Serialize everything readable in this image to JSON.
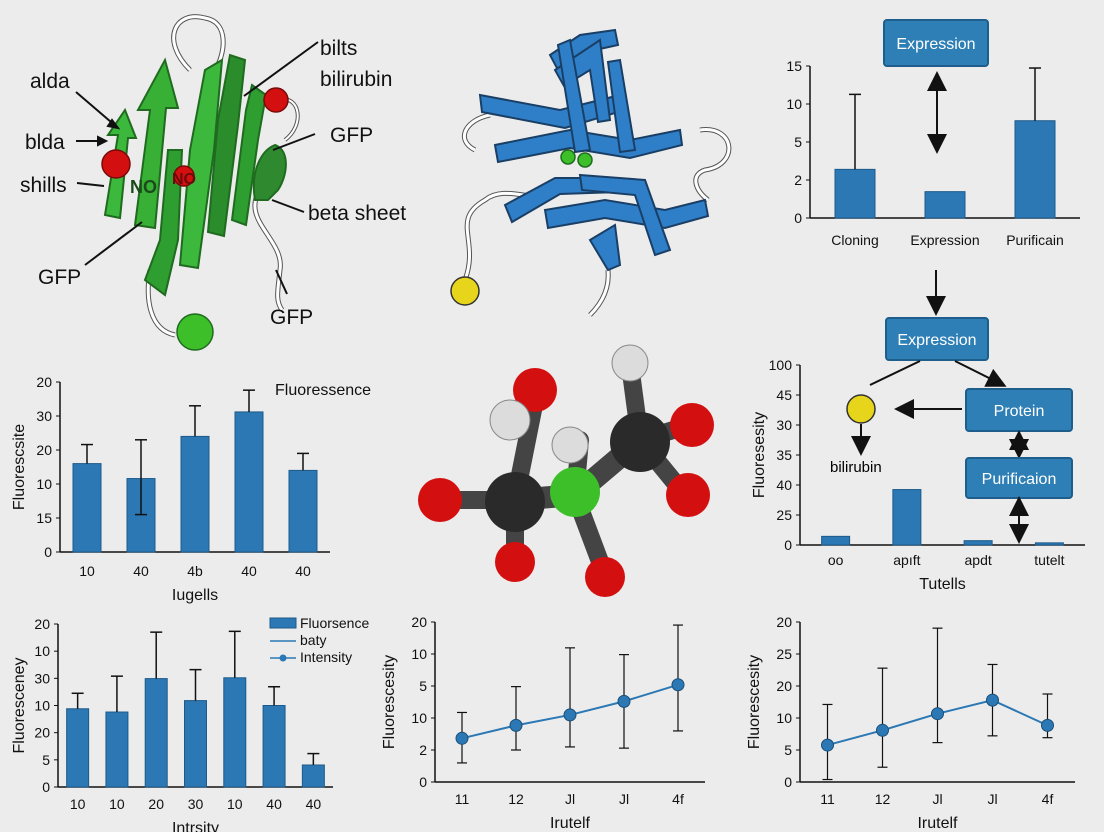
{
  "colors": {
    "bar": "#2b78b4",
    "bar_stroke": "#1d5a8a",
    "box_fill": "#2e7fb5",
    "box_stroke": "#1e5e8c",
    "green_strand": "#2f9e30",
    "blue_strand": "#2f7fc8",
    "red_atom": "#d40f0f",
    "yellow_atom": "#e6d51a",
    "green_atom": "#3dbf2a",
    "black_atom": "#2a2a2a",
    "white_atom": "#dcdcdc"
  },
  "gfp_structure": {
    "labels": {
      "alda": "alda",
      "bilts": "bilts",
      "bilirubin": "bilirubin",
      "blda": "blda",
      "gfp_right": "GFP",
      "shills": "shills",
      "beta_sheet": "beta sheet",
      "gfp_left": "GFP",
      "gfp_bottom": "GFP"
    },
    "chromophore_text": "NO"
  },
  "flow": {
    "top_box": "Expression",
    "mid_box": "Expression",
    "protein_box": "Protein",
    "purification_box": "Purificaion",
    "bilirubin_label": "bilirubin"
  },
  "charts": {
    "top_right": {
      "ylabel_ticks": [
        "15",
        "10",
        "5",
        "2",
        "0"
      ],
      "xlabels": [
        "Cloning",
        "Expression",
        "Purificain"
      ]
    },
    "mid_left": {
      "title": "Fluoressence",
      "ylabel": "Fluorescsite",
      "xlabel": "Iugells",
      "ylabel_ticks": [
        "20",
        "30",
        "20",
        "10",
        "15",
        "0"
      ],
      "xlabels": [
        "10",
        "40",
        "4b",
        "40",
        "40"
      ]
    },
    "mid_right": {
      "ylabel": "Fluoresesity",
      "xlabel": "Tutells",
      "ylabel_ticks": [
        "100",
        "45",
        "30",
        "35",
        "40",
        "25",
        "0"
      ],
      "xlabels": [
        "oo",
        "apıft",
        "apdt",
        "tutelt"
      ]
    },
    "bottom_left": {
      "ylabel": "Fluoresceney",
      "xlabel": "Intrsity",
      "ylabel_ticks": [
        "20",
        "10",
        "30",
        "10",
        "20",
        "5",
        "0"
      ],
      "xlabels": [
        "10",
        "10",
        "20",
        "30",
        "10",
        "40",
        "40"
      ],
      "legend": [
        "Fluorsence",
        "baty",
        "Intensity"
      ]
    },
    "bottom_mid": {
      "ylabel": "Fluorescesity",
      "xlabel": "Irutelf",
      "ylabel_ticks": [
        "20",
        "10",
        "5",
        "10",
        "2",
        "0"
      ],
      "xlabels": [
        "11",
        "12",
        "Jl",
        "Jl",
        "4f"
      ]
    },
    "bottom_right": {
      "ylabel": "Fluorescesity",
      "xlabel": "Irutelf",
      "ylabel_ticks": [
        "20",
        "25",
        "20",
        "10",
        "5",
        "0"
      ],
      "xlabels": [
        "11",
        "12",
        "Jl",
        "Jl",
        "4f"
      ]
    }
  },
  "chart_data": [
    {
      "type": "bar",
      "categories": [
        "Cloning",
        "Expression",
        "Purificain"
      ],
      "values": [
        4.8,
        2.6,
        9.6
      ],
      "error_high": [
        12.2,
        null,
        14.8
      ],
      "yticks": [
        "15",
        "10",
        "5",
        "2",
        "0"
      ],
      "grid": false
    },
    {
      "type": "bar",
      "title": "Fluoressence",
      "ylabel": "Fluorescsite",
      "xlabel": "Iugells",
      "categories": [
        "10",
        "40",
        "4b",
        "40",
        "40"
      ],
      "values": [
        13,
        10.8,
        17,
        20.6,
        12
      ],
      "error_high": [
        15.8,
        16.5,
        21.5,
        23.8,
        14.5
      ],
      "error_low": [
        null,
        5.5,
        null,
        null,
        null
      ],
      "grid": false
    },
    {
      "type": "bar",
      "ylabel": "Fluoresesity",
      "xlabel": "Tutells",
      "categories": [
        "oo",
        "apıft",
        "apdt",
        "tutelt"
      ],
      "values": [
        1.2,
        7.7,
        0.6,
        0.3
      ],
      "grid": false
    },
    {
      "type": "bar",
      "ylabel": "Fluoresceney",
      "xlabel": "Intrsity",
      "categories": [
        "10",
        "10",
        "20",
        "30",
        "10",
        "40",
        "40"
      ],
      "values": [
        9.6,
        9.2,
        13.3,
        10.6,
        13.4,
        10,
        2.7
      ],
      "error_high": [
        11.5,
        13.6,
        19,
        14.4,
        19.1,
        12.3,
        4.1
      ],
      "error_low": [
        null,
        null,
        null,
        null,
        null,
        null,
        null
      ],
      "legend": [
        "Fluorsence",
        "baty",
        "Intensity"
      ],
      "grid": false
    },
    {
      "type": "line",
      "ylabel": "Fluorescesity",
      "xlabel": "Irutelf",
      "categories": [
        "11",
        "12",
        "Jl",
        "Jl",
        "4f"
      ],
      "values": [
        7.1,
        9.2,
        10.9,
        13.1,
        15.8
      ],
      "error_high": [
        11.3,
        15.5,
        21.8,
        20.7,
        25.5
      ],
      "error_low": [
        3.1,
        5.2,
        5.7,
        5.5,
        8.3
      ],
      "grid": false
    },
    {
      "type": "line",
      "ylabel": "Fluorescesity",
      "xlabel": "Irutelf",
      "categories": [
        "11",
        "12",
        "Jl",
        "Jl",
        "4f"
      ],
      "values": [
        6,
        8.4,
        11.1,
        13.3,
        9.2
      ],
      "error_high": [
        12.6,
        18.5,
        25,
        19.1,
        14.3
      ],
      "error_low": [
        0.4,
        2.4,
        6.4,
        7.5,
        7.2
      ],
      "grid": false
    }
  ]
}
